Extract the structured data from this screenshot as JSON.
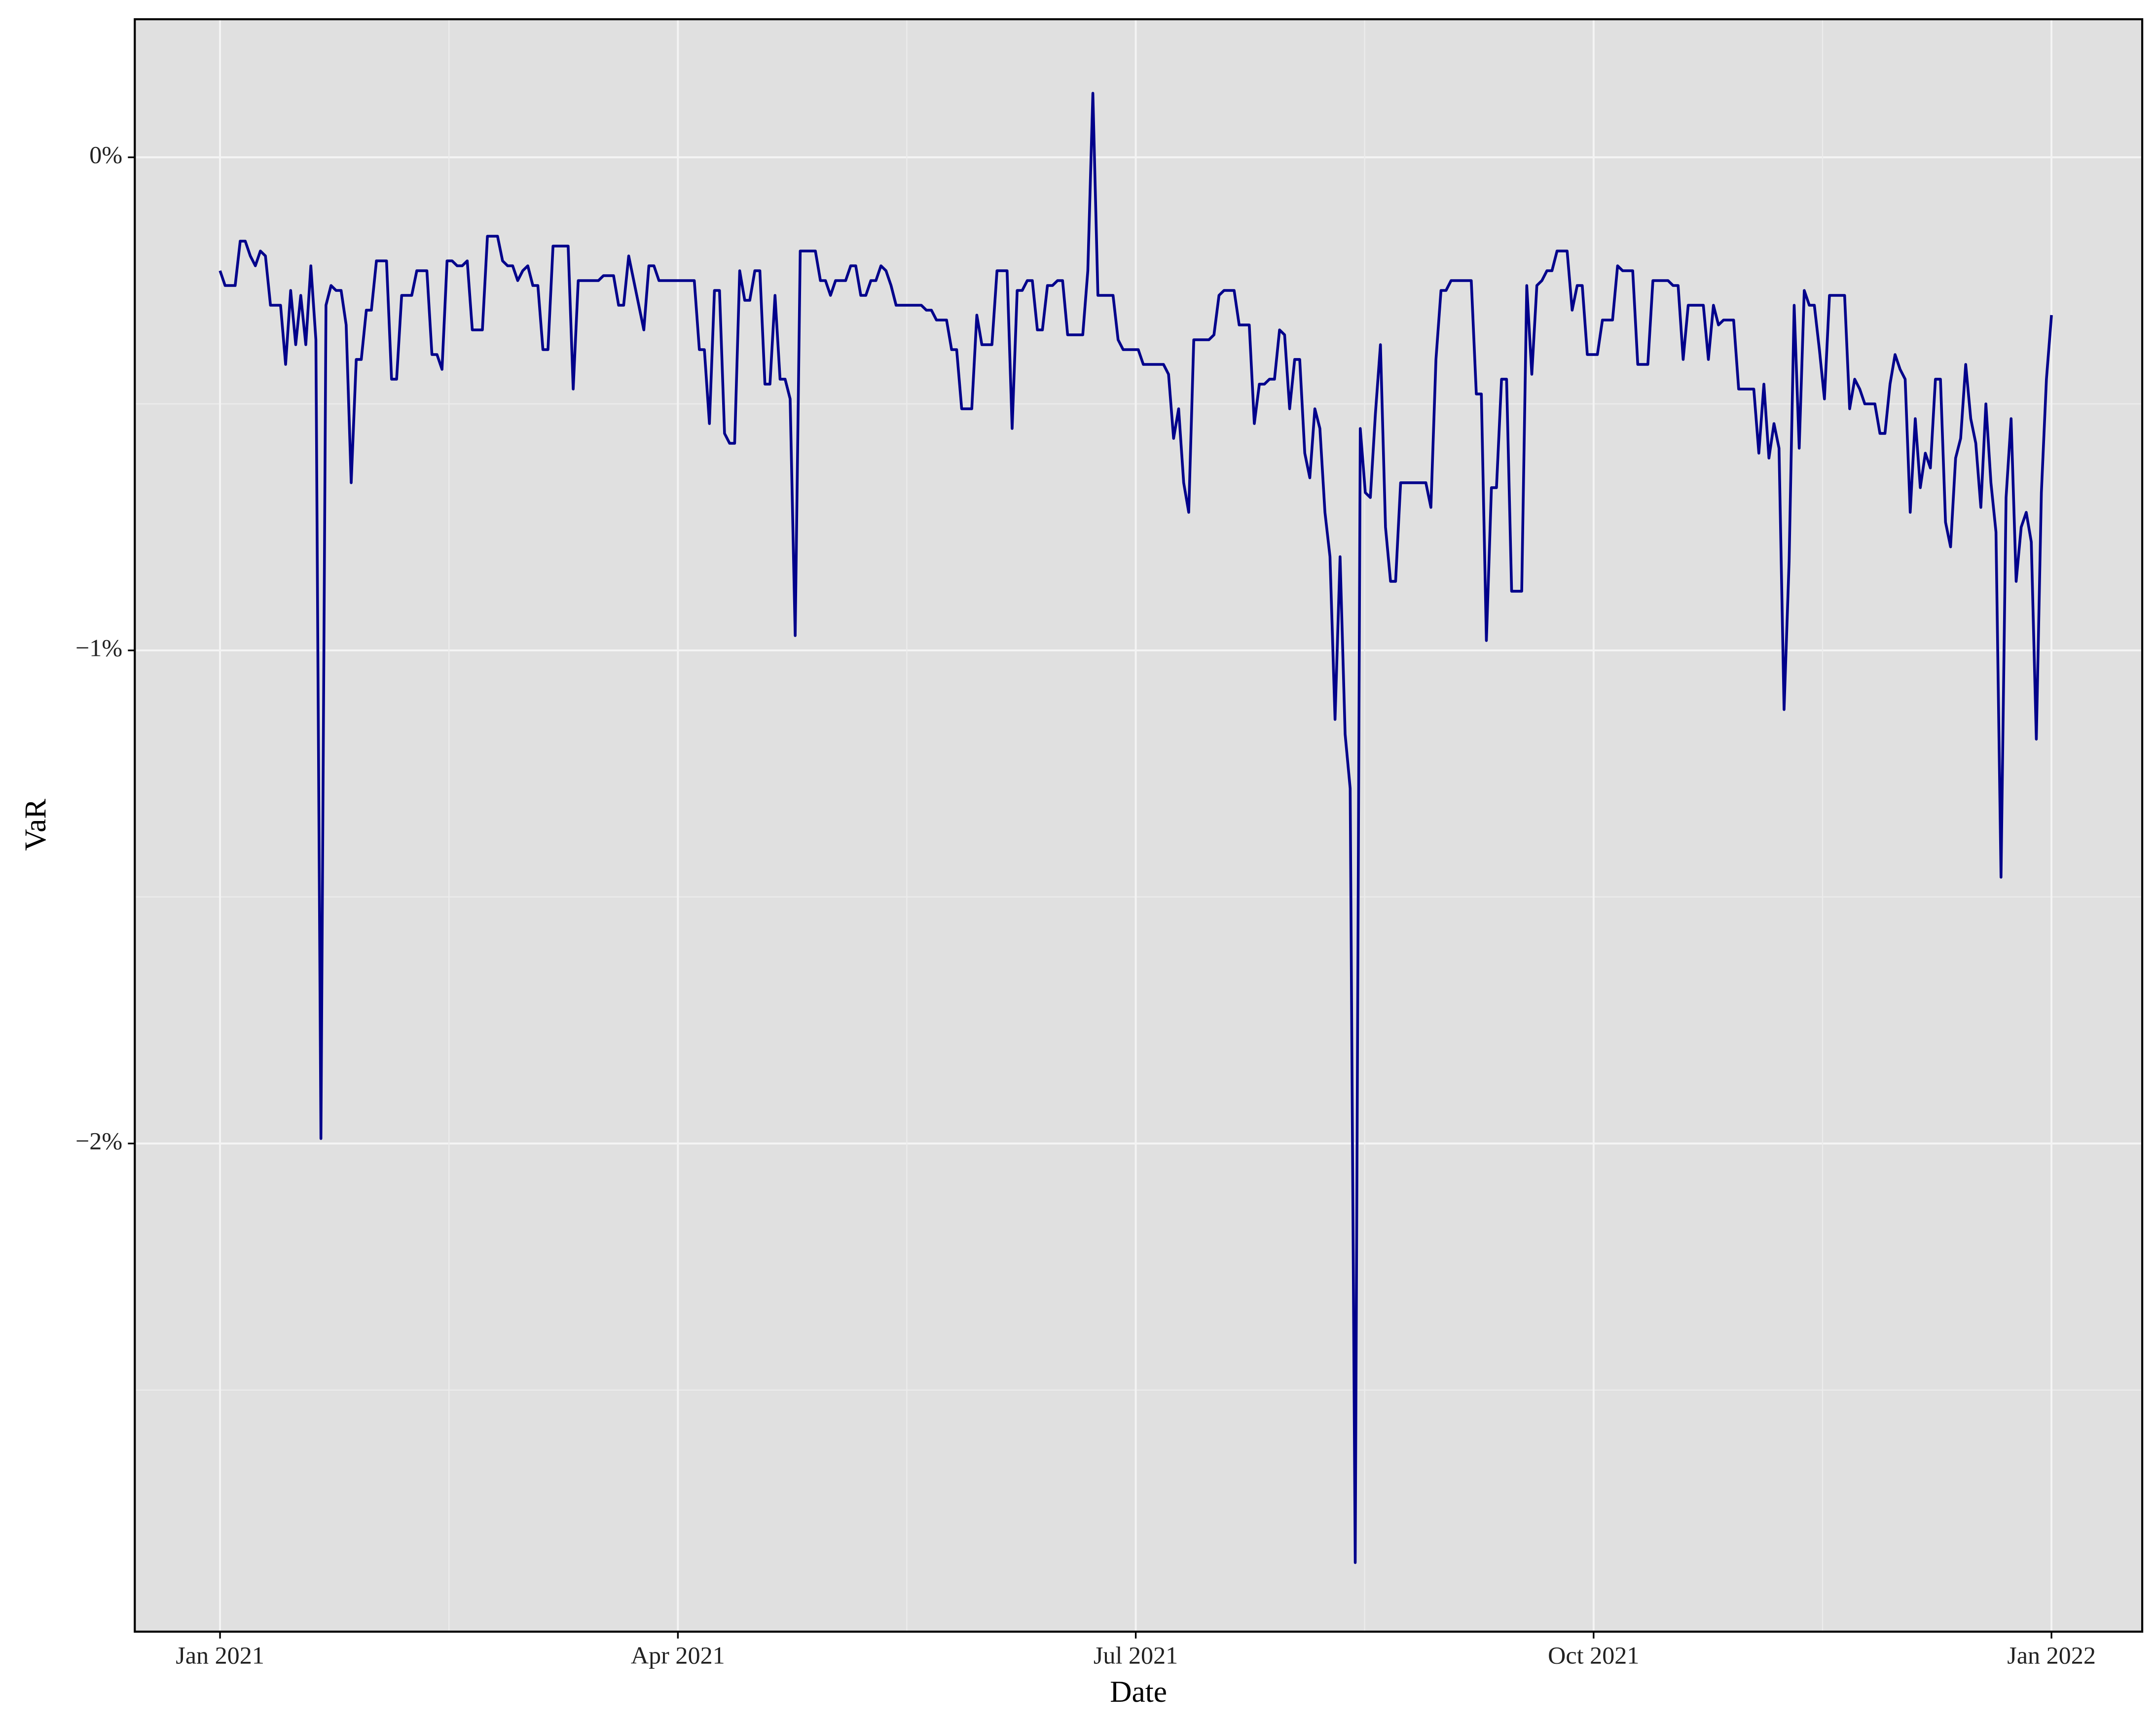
{
  "chart_data": {
    "type": "line",
    "xlabel": "Date",
    "ylabel": "VaR",
    "color": "#00008b",
    "xlim": [
      "2021-01",
      "2022-01"
    ],
    "xticks": [
      {
        "value": "2021-01",
        "label": "Jan 2021"
      },
      {
        "value": "2021-04",
        "label": "Apr 2021"
      },
      {
        "value": "2021-07",
        "label": "Jul 2021"
      },
      {
        "value": "2021-10",
        "label": "Oct 2021"
      },
      {
        "value": "2022-01",
        "label": "Jan 2022"
      }
    ],
    "ylim": [
      -2.99,
      0.28
    ],
    "yticks": [
      {
        "value": 0,
        "label": "0%"
      },
      {
        "value": -1,
        "label": "−1%"
      },
      {
        "value": -2,
        "label": "−2%"
      }
    ],
    "grid": true,
    "values": [
      -0.23,
      -0.26,
      -0.26,
      -0.26,
      -0.17,
      -0.17,
      -0.2,
      -0.22,
      -0.19,
      -0.2,
      -0.3,
      -0.3,
      -0.3,
      -0.42,
      -0.27,
      -0.38,
      -0.28,
      -0.38,
      -0.22,
      -0.37,
      -1.99,
      -0.3,
      -0.26,
      -0.27,
      -0.27,
      -0.34,
      -0.66,
      -0.41,
      -0.41,
      -0.31,
      -0.31,
      -0.21,
      -0.21,
      -0.21,
      -0.45,
      -0.45,
      -0.28,
      -0.28,
      -0.28,
      -0.23,
      -0.23,
      -0.23,
      -0.4,
      -0.4,
      -0.43,
      -0.21,
      -0.21,
      -0.22,
      -0.22,
      -0.21,
      -0.35,
      -0.35,
      -0.35,
      -0.16,
      -0.16,
      -0.16,
      -0.21,
      -0.22,
      -0.22,
      -0.25,
      -0.23,
      -0.22,
      -0.26,
      -0.26,
      -0.39,
      -0.39,
      -0.18,
      -0.18,
      -0.18,
      -0.18,
      -0.47,
      -0.25,
      -0.25,
      -0.25,
      -0.25,
      -0.25,
      -0.24,
      -0.24,
      -0.24,
      -0.3,
      -0.3,
      -0.2,
      -0.25,
      -0.3,
      -0.35,
      -0.22,
      -0.22,
      -0.25,
      -0.25,
      -0.25,
      -0.25,
      -0.25,
      -0.25,
      -0.25,
      -0.25,
      -0.39,
      -0.39,
      -0.54,
      -0.27,
      -0.27,
      -0.56,
      -0.58,
      -0.58,
      -0.23,
      -0.29,
      -0.29,
      -0.23,
      -0.23,
      -0.46,
      -0.46,
      -0.28,
      -0.45,
      -0.45,
      -0.49,
      -0.97,
      -0.19,
      -0.19,
      -0.19,
      -0.19,
      -0.25,
      -0.25,
      -0.28,
      -0.25,
      -0.25,
      -0.25,
      -0.22,
      -0.22,
      -0.28,
      -0.28,
      -0.25,
      -0.25,
      -0.22,
      -0.23,
      -0.26,
      -0.3,
      -0.3,
      -0.3,
      -0.3,
      -0.3,
      -0.3,
      -0.31,
      -0.31,
      -0.33,
      -0.33,
      -0.33,
      -0.39,
      -0.39,
      -0.51,
      -0.51,
      -0.51,
      -0.32,
      -0.38,
      -0.38,
      -0.38,
      -0.23,
      -0.23,
      -0.23,
      -0.55,
      -0.27,
      -0.27,
      -0.25,
      -0.25,
      -0.35,
      -0.35,
      -0.26,
      -0.26,
      -0.25,
      -0.25,
      -0.36,
      -0.36,
      -0.36,
      -0.36,
      -0.23,
      0.13,
      -0.28,
      -0.28,
      -0.28,
      -0.28,
      -0.37,
      -0.39,
      -0.39,
      -0.39,
      -0.39,
      -0.42,
      -0.42,
      -0.42,
      -0.42,
      -0.42,
      -0.44,
      -0.57,
      -0.51,
      -0.66,
      -0.72,
      -0.37,
      -0.37,
      -0.37,
      -0.37,
      -0.36,
      -0.28,
      -0.27,
      -0.27,
      -0.27,
      -0.34,
      -0.34,
      -0.34,
      -0.54,
      -0.46,
      -0.46,
      -0.45,
      -0.45,
      -0.35,
      -0.36,
      -0.51,
      -0.41,
      -0.41,
      -0.6,
      -0.65,
      -0.51,
      -0.55,
      -0.72,
      -0.81,
      -1.14,
      -0.81,
      -1.17,
      -1.28,
      -2.85,
      -0.55,
      -0.68,
      -0.69,
      -0.52,
      -0.38,
      -0.75,
      -0.86,
      -0.86,
      -0.66,
      -0.66,
      -0.66,
      -0.66,
      -0.66,
      -0.66,
      -0.71,
      -0.41,
      -0.27,
      -0.27,
      -0.25,
      -0.25,
      -0.25,
      -0.25,
      -0.25,
      -0.48,
      -0.48,
      -0.98,
      -0.67,
      -0.67,
      -0.45,
      -0.45,
      -0.88,
      -0.88,
      -0.88,
      -0.26,
      -0.44,
      -0.26,
      -0.25,
      -0.23,
      -0.23,
      -0.19,
      -0.19,
      -0.19,
      -0.31,
      -0.26,
      -0.26,
      -0.4,
      -0.4,
      -0.4,
      -0.33,
      -0.33,
      -0.33,
      -0.22,
      -0.23,
      -0.23,
      -0.23,
      -0.42,
      -0.42,
      -0.42,
      -0.25,
      -0.25,
      -0.25,
      -0.25,
      -0.26,
      -0.26,
      -0.41,
      -0.3,
      -0.3,
      -0.3,
      -0.3,
      -0.41,
      -0.3,
      -0.34,
      -0.33,
      -0.33,
      -0.33,
      -0.47,
      -0.47,
      -0.47,
      -0.47,
      -0.6,
      -0.46,
      -0.61,
      -0.54,
      -0.59,
      -1.12,
      -0.82,
      -0.3,
      -0.59,
      -0.27,
      -0.3,
      -0.3,
      -0.39,
      -0.49,
      -0.28,
      -0.28,
      -0.28,
      -0.28,
      -0.51,
      -0.45,
      -0.47,
      -0.5,
      -0.5,
      -0.5,
      -0.56,
      -0.56,
      -0.46,
      -0.4,
      -0.43,
      -0.45,
      -0.72,
      -0.53,
      -0.67,
      -0.6,
      -0.63,
      -0.45,
      -0.45,
      -0.74,
      -0.79,
      -0.61,
      -0.57,
      -0.42,
      -0.53,
      -0.58,
      -0.71,
      -0.5,
      -0.66,
      -0.76,
      -1.46,
      -0.69,
      -0.53,
      -0.86,
      -0.75,
      -0.72,
      -0.78,
      -1.18,
      -0.68,
      -0.45,
      -0.32
    ]
  }
}
